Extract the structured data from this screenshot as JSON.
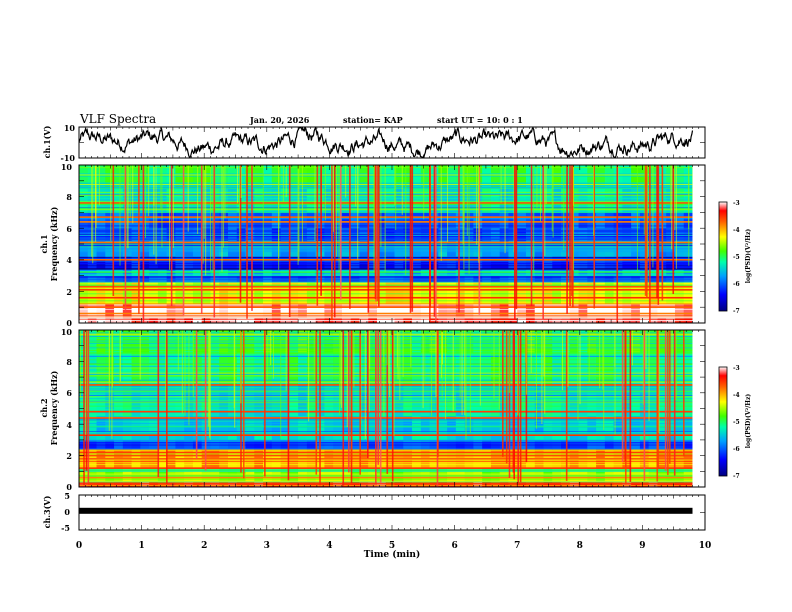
{
  "header": {
    "title": "VLF Spectra",
    "date": "Jan. 20, 2026",
    "station": "station= KAP",
    "start_ut": "start  UT =   10: 0  : 1"
  },
  "chart_data": [
    {
      "type": "line",
      "name": "ch1-waveform",
      "ylabel": "ch.1(V)",
      "ylim": [
        -10,
        10
      ],
      "y_ticks": [
        "10",
        "-10"
      ],
      "xlim": [
        0,
        10
      ],
      "data_end_min": 9.8
    },
    {
      "type": "heatmap",
      "name": "ch1-spectrogram",
      "ylabel": [
        "ch.1",
        "Frequency (kHz)"
      ],
      "ylim": [
        0,
        10
      ],
      "y_ticks": [
        "0",
        "2",
        "4",
        "6",
        "8",
        "10"
      ],
      "xlim": [
        0,
        10
      ],
      "data_end_min": 9.8,
      "colorbar": {
        "label": "log(PSD)(V²/Hz)",
        "range": [
          -7,
          -3
        ],
        "ticks": [
          "-3",
          "-4",
          "-5",
          "-6",
          "-7"
        ]
      },
      "bands": [
        {
          "f0": 0.0,
          "f1": 0.3,
          "level": -3.2
        },
        {
          "f0": 0.3,
          "f1": 1.2,
          "level": -3.0
        },
        {
          "f0": 1.2,
          "f1": 2.6,
          "level": -4.3
        },
        {
          "f0": 2.6,
          "f1": 3.0,
          "level": -6.2
        },
        {
          "f0": 3.0,
          "f1": 3.4,
          "level": -5.6
        },
        {
          "f0": 3.4,
          "f1": 4.2,
          "level": -6.3
        },
        {
          "f0": 4.2,
          "f1": 5.2,
          "level": -5.7
        },
        {
          "f0": 5.2,
          "f1": 6.0,
          "level": -6.1
        },
        {
          "f0": 6.0,
          "f1": 7.0,
          "level": -6.0
        },
        {
          "f0": 7.0,
          "f1": 8.5,
          "level": -5.3
        },
        {
          "f0": 8.5,
          "f1": 10.0,
          "level": -5.0
        }
      ],
      "lines_khz": [
        0.6,
        1.0,
        1.6,
        2.1,
        2.3,
        4.0,
        5.1,
        6.4,
        6.7,
        7.6
      ]
    },
    {
      "type": "heatmap",
      "name": "ch2-spectrogram",
      "ylabel": [
        "ch.2",
        "Frequency (kHz)"
      ],
      "ylim": [
        0,
        10
      ],
      "y_ticks": [
        "0",
        "2",
        "4",
        "6",
        "8",
        "10"
      ],
      "xlim": [
        0,
        10
      ],
      "data_end_min": 9.8,
      "colorbar": {
        "label": "log(PSD)(V²/Hz)",
        "range": [
          -7,
          -3
        ],
        "ticks": [
          "-3",
          "-4",
          "-5",
          "-6",
          "-7"
        ]
      },
      "bands": [
        {
          "f0": 0.0,
          "f1": 0.3,
          "level": -3.4
        },
        {
          "f0": 0.3,
          "f1": 1.2,
          "level": -4.6
        },
        {
          "f0": 1.2,
          "f1": 2.4,
          "level": -4.0
        },
        {
          "f0": 2.4,
          "f1": 3.0,
          "level": -6.1
        },
        {
          "f0": 3.0,
          "f1": 3.4,
          "level": -5.4
        },
        {
          "f0": 3.4,
          "f1": 4.5,
          "level": -5.5
        },
        {
          "f0": 4.5,
          "f1": 6.5,
          "level": -5.3
        },
        {
          "f0": 6.5,
          "f1": 8.5,
          "level": -5.1
        },
        {
          "f0": 8.5,
          "f1": 10.0,
          "level": -4.9
        }
      ],
      "lines_khz": [
        0.6,
        1.2,
        1.8,
        2.0,
        2.2,
        3.3,
        4.4,
        4.8,
        6.5
      ]
    },
    {
      "type": "line",
      "name": "ch3-waveform",
      "ylabel": "ch.3(V)",
      "ylim": [
        -5,
        5
      ],
      "y_ticks": [
        "5",
        "0",
        "-5"
      ],
      "xlim": [
        0,
        10
      ],
      "data_end_min": 9.8,
      "level_v": 0.5
    }
  ],
  "x_axis": {
    "label": "Time (min)",
    "ticks": [
      "0",
      "1",
      "2",
      "3",
      "4",
      "5",
      "6",
      "7",
      "8",
      "9",
      "10"
    ]
  }
}
